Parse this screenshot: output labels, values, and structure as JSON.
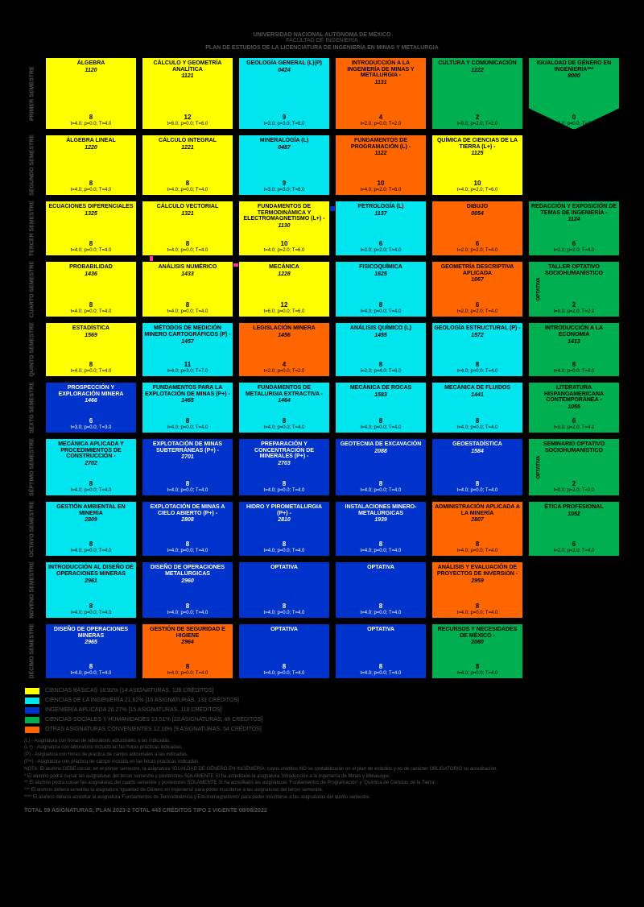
{
  "colors": {
    "yellow": "#ffff00",
    "cyan": "#00e5ee",
    "blue": "#0033cc",
    "green": "#00b050",
    "orange": "#ff6600",
    "blue_text": "#ffffff",
    "dark_text": "#000000",
    "pink_arrow": "#ff3399",
    "blue_arrow": "#0033cc"
  },
  "header": {
    "uni": "UNIVERSIDAD NACIONAL AUTÓNOMA DE MÉXICO",
    "fac": "FACULTAD DE INGENIERÍA",
    "plan": "PLAN DE ESTUDIOS DE LA LICENCIATURA DE INGENIERÍA EN MINAS Y METALURGIA"
  },
  "sem_labels": [
    "PRIMER SEMESTRE",
    "SEGUNDO SEMESTRE",
    "TERCER SEMESTRE",
    "CUARTO SEMESTRE",
    "QUINTO SEMESTRE",
    "SEXTO SEMESTRE",
    "SÉPTIMO SEMESTRE",
    "OCTAVO SEMESTRE",
    "NOVENO SEMESTRE",
    "DÉCIMO SEMESTRE"
  ],
  "courses": [
    [
      {
        "name": "ÁLGEBRA",
        "code": "1120",
        "credits": "8",
        "hours": "t=4.0; p=0.0; T=4.0",
        "color": "yellow"
      },
      {
        "name": "CÁLCULO Y GEOMETRÍA ANALÍTICA",
        "code": "1121",
        "credits": "12",
        "hours": "t=6.0; p=0.0; T=6.0",
        "color": "yellow"
      },
      {
        "name": "GEOLOGÍA GENERAL (L)(P)",
        "code": "0424",
        "credits": "9",
        "hours": "t=3.0; p=3.0; T=6.0",
        "color": "cyan"
      },
      {
        "name": "INTRODUCCIÓN A LA INGENIERÍA DE MINAS Y METALURGIA -",
        "code": "1131",
        "credits": "4",
        "hours": "t=2.0; p=0.0; T=2.0",
        "color": "orange"
      },
      {
        "name": "CULTURA Y COMUNICACIÓN",
        "code": "1222",
        "credits": "2",
        "hours": "t=0.0; p=2.0; T=2.0",
        "color": "green"
      },
      {
        "name": "IGUALDAD DE GÉNERO EN INGENIERÍA***",
        "code": "8000",
        "credits": "0",
        "hours": "t=2.0; p=0.0; T=2.0",
        "color": "green",
        "shape": "arrow"
      }
    ],
    [
      {
        "name": "ÁLGEBRA LINEAL",
        "code": "1220",
        "credits": "8",
        "hours": "t=4.0; p=0.0; T=4.0",
        "color": "yellow"
      },
      {
        "name": "CÁLCULO INTEGRAL",
        "code": "1221",
        "credits": "8",
        "hours": "t=4.0; p=0.0; T=4.0",
        "color": "yellow"
      },
      {
        "name": "MINERALOGÍA (L)",
        "code": "0487",
        "credits": "9",
        "hours": "t=3.0; p=3.0; T=6.0",
        "color": "cyan"
      },
      {
        "name": "FUNDAMENTOS DE PROGRAMACIÓN (L) -",
        "code": "1122",
        "credits": "10",
        "hours": "t=4.0; p=2.0; T=6.0",
        "color": "orange"
      },
      {
        "name": "QUÍMICA DE CIENCIAS DE LA TIERRA (L+) -",
        "code": "1125",
        "credits": "10",
        "hours": "t=4.0; p=2.0; T=6.0",
        "color": "yellow"
      },
      null
    ],
    [
      {
        "name": "ECUACIONES DIFERENCIALES",
        "code": "1325",
        "credits": "8",
        "hours": "t=4.0; p=0.0; T=4.0",
        "color": "yellow"
      },
      {
        "name": "CÁLCULO VECTORIAL",
        "code": "1321",
        "credits": "8",
        "hours": "t=4.0; p=0.0; T=4.0",
        "color": "yellow"
      },
      {
        "name": "FUNDAMENTOS DE TERMODINÁMICA Y ELECTROMAGNETISMO (L+) -",
        "code": "1130",
        "credits": "10",
        "hours": "t=4.0; p=2.0; T=6.0",
        "color": "yellow"
      },
      {
        "name": "PETROLOGÍA (L)",
        "code": "1137",
        "credits": "6",
        "hours": "t=2.0; p=2.0; T=4.0",
        "color": "cyan"
      },
      {
        "name": "DIBUJO",
        "code": "0054",
        "credits": "6",
        "hours": "t=2.0; p=2.0; T=4.0",
        "color": "orange"
      },
      {
        "name": "REDACCIÓN Y EXPOSICIÓN DE TEMAS DE INGENIERÍA  -",
        "code": "1124",
        "credits": "6",
        "hours": "t=2.0; p=2.0; T=4.0",
        "color": "green"
      }
    ],
    [
      {
        "name": "PROBABILIDAD",
        "code": "1436",
        "credits": "8",
        "hours": "t=4.0; p=0.0; T=4.0",
        "color": "yellow"
      },
      {
        "name": "ANÁLISIS NUMÉRICO",
        "code": "1433",
        "credits": "8",
        "hours": "t=4.0; p=0.0; T=4.0",
        "color": "yellow"
      },
      {
        "name": "MECÁNICA",
        "code": "1228",
        "credits": "12",
        "hours": "t=6.0; p=0.0; T=6.0",
        "color": "yellow"
      },
      {
        "name": "FISICOQUÍMICA",
        "code": "1625",
        "credits": "8",
        "hours": "t=4.0; p=0.0; T=4.0",
        "color": "cyan"
      },
      {
        "name": "GEOMETRÍA DESCRIPTIVA APLICADA",
        "code": "1067",
        "credits": "6",
        "hours": "t=2.0; p=2.0; T=4.0",
        "color": "orange"
      },
      {
        "name": "TALLER OPTATIVO SOCIOHUMANÍSTICO",
        "code": "",
        "credits": "2",
        "hours": "t=0.0; p=2.0; T=2.0",
        "color": "green",
        "opt": "OPTATIVA"
      }
    ],
    [
      {
        "name": "ESTADÍSTICA",
        "code": "1569",
        "credits": "8",
        "hours": "t=4.0; p=0.0; T=4.0",
        "color": "yellow"
      },
      {
        "name": "MÉTODOS DE MEDICIÓN MINERO CARTOGRÁFICOS (P) -",
        "code": "1457",
        "credits": "11",
        "hours": "t=4.0; p=3.0; T=7.0",
        "color": "cyan"
      },
      {
        "name": "LEGISLACIÓN MINERA",
        "code": "1456",
        "credits": "4",
        "hours": "t=2.0; p=0.0; T=2.0",
        "color": "orange"
      },
      {
        "name": "ANÁLISIS QUÍMICO (L)",
        "code": "1455",
        "credits": "8",
        "hours": "t=2.0; p=4.0; T=6.0",
        "color": "cyan"
      },
      {
        "name": "GEOLOGÍA ESTRUCTURAL (P) -",
        "code": "1572",
        "credits": "8",
        "hours": "t=4.0; p=0.0; T=4.0",
        "color": "cyan"
      },
      {
        "name": "INTRODUCCIÓN A LA ECONOMÍA",
        "code": "1413",
        "credits": "8",
        "hours": "t=4.0; p=0.0; T=4.0",
        "color": "green"
      }
    ],
    [
      {
        "name": "PROSPECCIÓN Y EXPLORACIÓN MINERA",
        "code": "1466",
        "credits": "6",
        "hours": "t=3.0; p=0.0; T=3.0",
        "color": "blue"
      },
      {
        "name": "FUNDAMENTOS PARA LA EXPLOTACIÓN DE MINAS (P+) -",
        "code": "1465",
        "credits": "8",
        "hours": "t=4.0; p=0.0; T=4.0",
        "color": "cyan"
      },
      {
        "name": "FUNDAMENTOS DE METALURGIA EXTRACTIVA -",
        "code": "1464",
        "credits": "8",
        "hours": "t=4.0; p=0.0; T=4.0",
        "color": "cyan"
      },
      {
        "name": "MECÁNICA DE ROCAS",
        "code": "1583",
        "credits": "8",
        "hours": "t=4.0; p=0.0; T=4.0",
        "color": "cyan"
      },
      {
        "name": "MECÁNICA DE FLUIDOS",
        "code": "1441",
        "credits": "8",
        "hours": "t=4.0; p=0.0; T=4.0",
        "color": "cyan"
      },
      {
        "name": "LITERATURA HISPANOAMERICANA CONTEMPORÁNEA -",
        "code": "1055",
        "credits": "6",
        "hours": "t=2.0; p=2.0; T=4.0",
        "color": "green"
      }
    ],
    [
      {
        "name": "MECÁNICA APLICADA Y PROCEDIMIENTOS DE CONSTRUCCIÓN -",
        "code": "2702",
        "credits": "8",
        "hours": "t=4.0; p=0.0; T=4.0",
        "color": "cyan"
      },
      {
        "name": "EXPLOTACIÓN DE MINAS SUBTERRÁNEAS (P+) -",
        "code": "2701",
        "credits": "8",
        "hours": "t=4.0; p=0.0; T=4.0",
        "color": "blue"
      },
      {
        "name": "PREPARACIÓN Y CONCENTRACIÓN DE MINERALES (P+) -",
        "code": "2703",
        "credits": "8",
        "hours": "t=4.0; p=0.0; T=4.0",
        "color": "blue"
      },
      {
        "name": "GEOTECNIA DE EXCAVACIÓN",
        "code": "2088",
        "credits": "8",
        "hours": "t=4.0; p=0.0; T=4.0",
        "color": "blue"
      },
      {
        "name": "GEOESTADÍSTICA",
        "code": "1584",
        "credits": "8",
        "hours": "t=4.0; p=0.0; T=4.0",
        "color": "blue"
      },
      {
        "name": "SEMINARIO OPTATIVO SOCIOHUMANÍSTICO",
        "code": "",
        "credits": "2",
        "hours": "t=0.0; p=2.0; T=2.0",
        "color": "green",
        "opt": "OPTATIVA"
      }
    ],
    [
      {
        "name": "GESTIÓN AMBIENTAL EN MINERÍA",
        "code": "2809",
        "credits": "8",
        "hours": "t=4.0; p=0.0; T=4.0",
        "color": "cyan"
      },
      {
        "name": "EXPLOTACIÓN DE MINAS A CIELO ABIERTO (P+) -",
        "code": "2808",
        "credits": "8",
        "hours": "t=4.0; p=0.0; T=4.0",
        "color": "blue"
      },
      {
        "name": "HIDRO Y PIROMETALURGIA (P+) -",
        "code": "2810",
        "credits": "8",
        "hours": "t=4.0; p=0.0; T=4.0",
        "color": "blue"
      },
      {
        "name": "INSTALACIONES MINERO-METALÚRGICAS",
        "code": "1939",
        "credits": "8",
        "hours": "t=4.0; p=0.0; T=4.0",
        "color": "blue"
      },
      {
        "name": "ADMINISTRACIÓN APLICADA A LA MINERÍA",
        "code": "2807",
        "credits": "8",
        "hours": "t=4.0; p=0.0; T=4.0",
        "color": "orange"
      },
      {
        "name": "ÉTICA PROFESIONAL",
        "code": "1052",
        "credits": "6",
        "hours": "t=2.0; p=2.0; T=4.0",
        "color": "green"
      }
    ],
    [
      {
        "name": "INTRODUCCIÓN AL DISEÑO DE OPERACIONES MINERAS",
        "code": "2961",
        "credits": "8",
        "hours": "t=4.0; p=0.0; T=4.0",
        "color": "cyan"
      },
      {
        "name": "DISEÑO DE OPERACIONES METALÚRGICAS",
        "code": "2960",
        "credits": "8",
        "hours": "t=4.0; p=0.0; T=4.0",
        "color": "blue"
      },
      {
        "name": "OPTATIVA",
        "code": "",
        "credits": "8",
        "hours": "t=4.0; p=0.0; T=4.0",
        "color": "blue"
      },
      {
        "name": "OPTATIVA",
        "code": "",
        "credits": "8",
        "hours": "t=4.0; p=0.0; T=4.0",
        "color": "blue"
      },
      {
        "name": "ANÁLISIS Y EVALUACIÓN DE PROYECTOS DE INVERSIÓN -",
        "code": "2959",
        "credits": "8",
        "hours": "t=4.0; p=0.0; T=4.0",
        "color": "orange"
      },
      null
    ],
    [
      {
        "name": "DISEÑO DE OPERACIONES MINERAS",
        "code": "2965",
        "credits": "8",
        "hours": "t=4.0; p=0.0; T=4.0",
        "color": "blue"
      },
      {
        "name": "GESTIÓN DE SEGURIDAD E HIGIENE",
        "code": "2964",
        "credits": "8",
        "hours": "t=4.0; p=0.0; T=4.0",
        "color": "orange"
      },
      {
        "name": "OPTATIVA",
        "code": "",
        "credits": "8",
        "hours": "t=4.0; p=0.0; T=4.0",
        "color": "blue"
      },
      {
        "name": "OPTATIVA",
        "code": "",
        "credits": "8",
        "hours": "t=4.0; p=0.0; T=4.0",
        "color": "blue"
      },
      {
        "name": "RECURSOS Y NECESIDADES DE MÉXICO -",
        "code": "2080",
        "credits": "8",
        "hours": "t=4.0; p=0.0; T=4.0",
        "color": "green"
      },
      null
    ]
  ],
  "legend": [
    {
      "color": "yellow",
      "label": "CIENCIAS BÁSICAS   18.92%    [14 ASIGNATURAS, 126 CRÉDITOS]"
    },
    {
      "color": "cyan",
      "label": "CIENCIAS DE LA INGENIERÍA   21.62%  [16 ASIGNATURAS, 131 CRÉDITOS]"
    },
    {
      "color": "blue",
      "label": "INGENIERÍA APLICADA   20.27%   [15 ASIGNATURAS, 118 CRÉDITOS]"
    },
    {
      "color": "green",
      "label": "CIENCIAS SOCIALES Y HUMANIDADES  13.51%  [10 ASIGNATURAS, 46 CRÉDITOS]"
    },
    {
      "color": "orange",
      "label": "OTRAS ASIGNATURAS CONVENIENTES   12.16%   [9 ASIGNATURAS, 54 CRÉDITOS]"
    }
  ],
  "footer": [
    "(L) - Asignatura con horas de laboratorio adicionales a las indicadas.",
    "(L+) - Asignatura con laboratorio incluido en las horas prácticas indicadas.",
    "(P) - Asignatura con horas de práctica de campo adicionales a las indicadas.",
    "(P+) - Asignatura con práctica de campo incluida en las horas prácticas indicadas.",
    "NOTA: El alumno DEBE cursar, en el primer semestre, la asignatura 'IGUALDAD DE GÉNERO EN INGENIERÍA' cuyos créditos NO se contabilizarán en el plan de estudios y es de carácter OBLIGATORIO su acreditación.",
    "* El alumno podrá cursar las asignaturas del tercer semestre y posteriores SOLAMENTE SI ha acreditado la asignatura 'Introducción a la Ingeniería de Minas y Metalurgia'.",
    "** El alumno podrá cursar las asignaturas del cuarto semestre y posteriores SOLAMENTE SI ha acreditado las asignaturas 'Fundamentos de Programación' y 'Química de Ciencias de la Tierra'.",
    "*** El alumno deberá acreditar la asignatura 'Igualdad de Género en Ingeniería' para poder inscribirse a las asignaturas del tercer semestre.",
    "**** El alumno deberá acreditar la asignatura 'Fundamentos de Termodinámica y Electromagnetismo' para poder inscribirse a las asignaturas del quinto semestre."
  ],
  "totals": "TOTAL 59 ASIGNATURAS; PLAN 2023-2    TOTAL 443 CRÉDITOS    TIPO 2    VIGENTE 08/08/2022"
}
